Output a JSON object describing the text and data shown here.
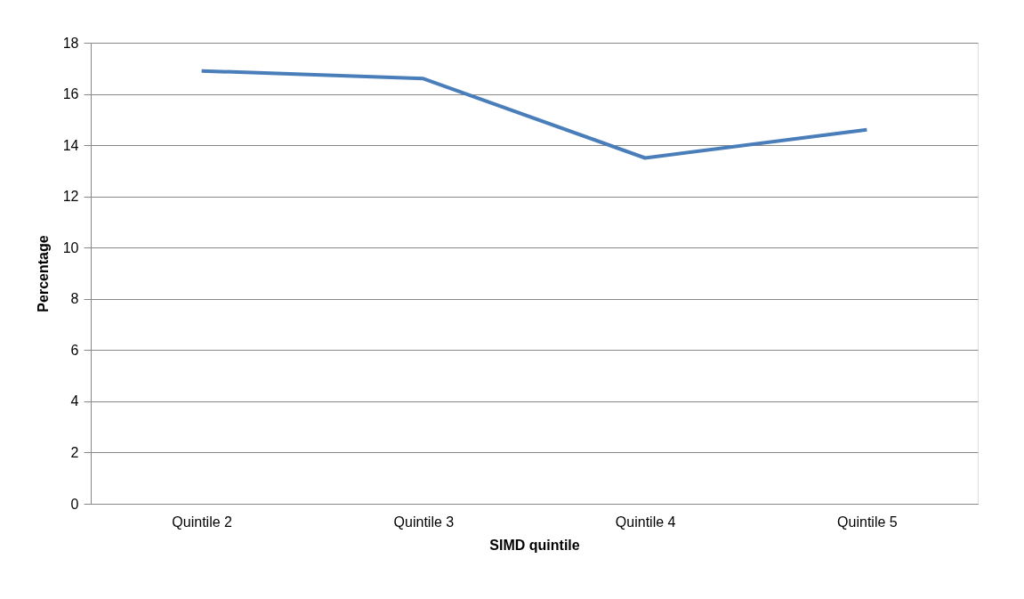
{
  "chart_data": {
    "type": "line",
    "xlabel": "SIMD quintile",
    "ylabel": "Percentage",
    "categories": [
      "Quintile 2",
      "Quintile 3",
      "Quintile 4",
      "Quintile 5"
    ],
    "series": [
      {
        "color": "#4a7ebb",
        "values": [
          16.9,
          16.6,
          13.5,
          14.6
        ]
      }
    ],
    "ylim": [
      0,
      18
    ],
    "yticks": [
      0,
      2,
      4,
      6,
      8,
      10,
      12,
      14,
      16,
      18
    ],
    "grid": "y",
    "marker": "none",
    "line_style": "solid"
  }
}
